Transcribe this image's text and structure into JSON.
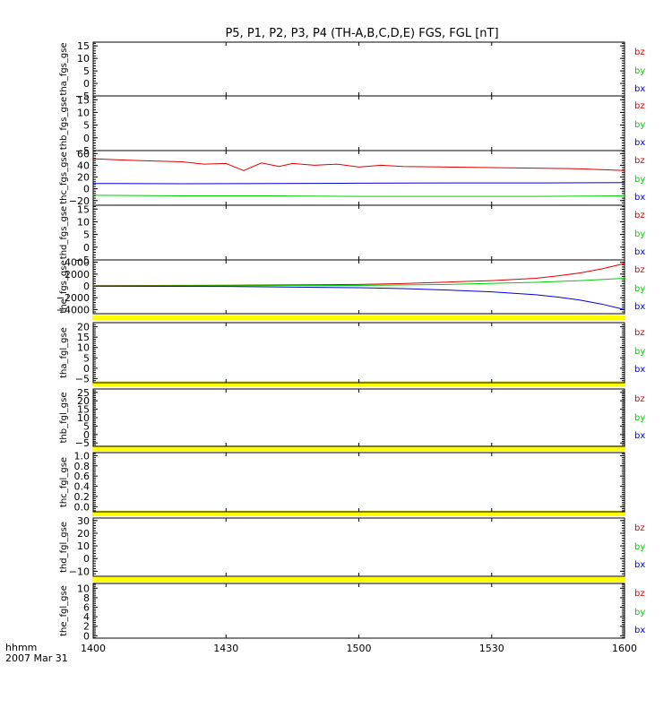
{
  "chart_data": {
    "type": "line",
    "title": "P5, P1, P2, P3, P4 (TH-A,B,C,D,E) FGS, FGL [nT]",
    "time_axis": {
      "label_line1": "hhmm",
      "label_line2": "2007 Mar 31",
      "start": 1400,
      "end": 1600,
      "ticks": [
        "1400",
        "1430",
        "1500",
        "1530",
        "1600"
      ]
    },
    "colors": {
      "bz": "#e00000",
      "by": "#00d000",
      "bx": "#0000e0",
      "gap_band": "#ffff00"
    },
    "panels": [
      {
        "ylabel": "tha_fgs_gse",
        "yticks": [
          -5,
          0,
          5,
          10,
          15
        ],
        "ylim": [
          -5,
          16.5
        ],
        "legend": [
          "bz",
          "by",
          "bx"
        ],
        "series": []
      },
      {
        "ylabel": "thb_fgs_gse",
        "yticks": [
          -5,
          0,
          5,
          10,
          15
        ],
        "ylim": [
          -5,
          16.5
        ],
        "legend": [
          "bz",
          "by",
          "bx"
        ],
        "series": []
      },
      {
        "ylabel": "thc_fgs_gse",
        "yticks": [
          -20,
          0,
          20,
          40,
          60
        ],
        "ylim": [
          -28,
          65
        ],
        "legend": [
          "bz",
          "by",
          "bx"
        ],
        "series": [
          {
            "name": "bz",
            "t": [
              0,
              10,
              20,
              25,
              30,
              34,
              38,
              42,
              45,
              50,
              55,
              60,
              65,
              70,
              80,
              90,
              100,
              110,
              120
            ],
            "values": [
              51,
              48,
              46,
              42,
              43,
              31,
              44,
              38,
              43,
              40,
              42,
              37,
              40,
              38,
              37,
              36,
              35,
              34,
              31
            ]
          },
          {
            "name": "bx",
            "t": [
              0,
              20,
              40,
              60,
              80,
              100,
              120
            ],
            "values": [
              9,
              8.5,
              9,
              9.5,
              10,
              10,
              10.5
            ]
          },
          {
            "name": "by",
            "t": [
              0,
              20,
              40,
              60,
              80,
              100,
              120
            ],
            "values": [
              -11,
              -12,
              -12,
              -13,
              -13,
              -13,
              -12
            ]
          }
        ]
      },
      {
        "ylabel": "thd_fgs_gse",
        "yticks": [
          -5,
          0,
          5,
          10,
          15
        ],
        "ylim": [
          -5,
          16.5
        ],
        "legend": [
          "bz",
          "by",
          "bx"
        ],
        "series": []
      },
      {
        "ylabel": "the_fgs_gse",
        "yticks": [
          -4000,
          -2000,
          0,
          2000,
          4000
        ],
        "ylim": [
          -4700,
          4400
        ],
        "legend": [
          "bz",
          "by",
          "bx"
        ],
        "series": [
          {
            "name": "bz",
            "t": [
              0,
              30,
              60,
              70,
              80,
              90,
              100,
              105,
              110,
              115,
              120
            ],
            "values": [
              50,
              120,
              250,
              400,
              650,
              900,
              1300,
              1700,
              2200,
              2900,
              3800
            ]
          },
          {
            "name": "by",
            "t": [
              0,
              30,
              60,
              80,
              100,
              110,
              120
            ],
            "values": [
              0,
              40,
              80,
              250,
              600,
              900,
              1300
            ]
          },
          {
            "name": "bx",
            "t": [
              0,
              30,
              60,
              70,
              80,
              90,
              100,
              105,
              110,
              115,
              120
            ],
            "values": [
              -50,
              -100,
              -300,
              -450,
              -700,
              -1000,
              -1500,
              -1900,
              -2400,
              -3100,
              -4000
            ]
          }
        ]
      },
      {
        "ylabel": "tha_fgl_gse",
        "yticks": [
          -5,
          0,
          5,
          10,
          15,
          20
        ],
        "ylim": [
          -7,
          22
        ],
        "legend": [
          "bz",
          "by",
          "bx"
        ],
        "series": []
      },
      {
        "ylabel": "thb_fgl_gse",
        "yticks": [
          -5,
          0,
          5,
          10,
          15,
          20,
          25
        ],
        "ylim": [
          -7,
          27
        ],
        "legend": [
          "bz",
          "by",
          "bx"
        ],
        "series": []
      },
      {
        "ylabel": "thc_fgl_gse",
        "yticks": [
          0.0,
          0.2,
          0.4,
          0.6,
          0.8,
          1.0
        ],
        "tick_labels": [
          "0.0",
          "0.2",
          "0.4",
          "0.6",
          "0.8",
          "1.0"
        ],
        "ylim": [
          -0.1,
          1.06
        ],
        "legend": [],
        "series": []
      },
      {
        "ylabel": "thd_fgl_gse",
        "yticks": [
          -10,
          0,
          10,
          20,
          30
        ],
        "ylim": [
          -14,
          32
        ],
        "legend": [
          "bz",
          "by",
          "bx"
        ],
        "series": []
      },
      {
        "ylabel": "the_fgl_gse",
        "yticks": [
          0,
          2,
          4,
          6,
          8,
          10
        ],
        "ylim": [
          -0.5,
          11
        ],
        "legend": [
          "bz",
          "by",
          "bx"
        ],
        "series": []
      }
    ]
  }
}
